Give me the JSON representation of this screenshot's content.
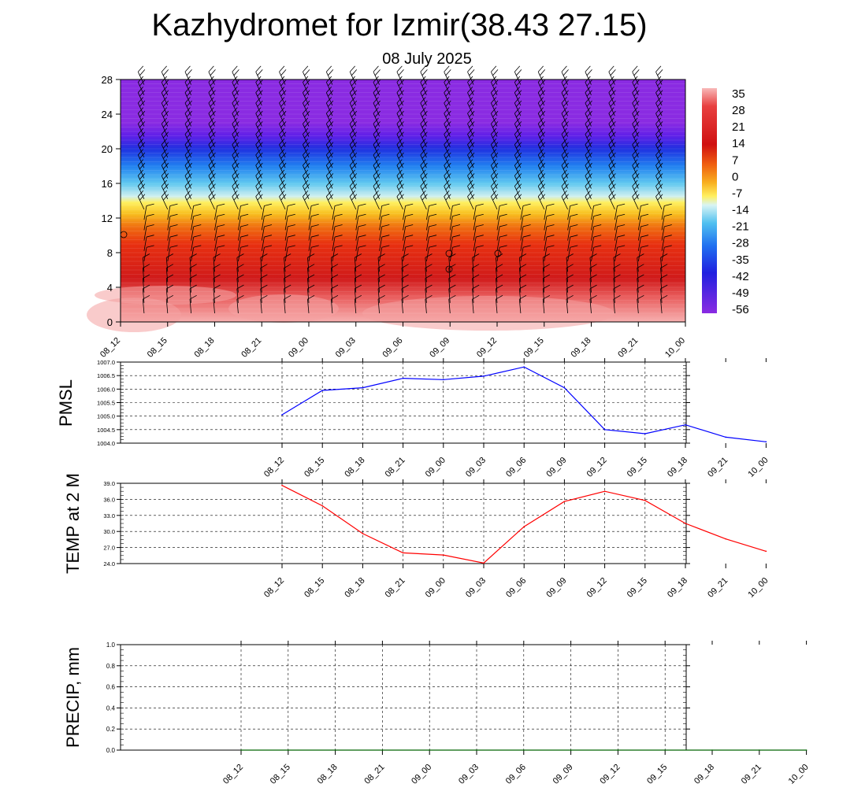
{
  "title": "Kazhydromet for Izmir(38.43 27.15)",
  "subtitle": "08 July 2025",
  "chart_data": [
    {
      "type": "heatmap",
      "name": "vertical-section",
      "time_labels": [
        "08_12",
        "08_15",
        "08_18",
        "08_21",
        "09_00",
        "09_03",
        "09_06",
        "09_09",
        "09_12",
        "09_15",
        "09_18",
        "09_21",
        "10_00"
      ],
      "y_ticks": [
        0,
        4,
        8,
        12,
        16,
        20,
        24,
        28
      ],
      "ylim": [
        0,
        28
      ],
      "colorbar_labels": [
        "35",
        "28",
        "21",
        "14",
        "7",
        "0",
        "-7",
        "-14",
        "-21",
        "-28",
        "-35",
        "-42",
        "-49",
        "-56"
      ],
      "colors": {
        "stops": [
          {
            "level": 0,
            "color": "#f7b0b0"
          },
          {
            "level": 3,
            "color": "#e85a5a"
          },
          {
            "level": 5,
            "color": "#d01a1a"
          },
          {
            "level": 9,
            "color": "#e83010"
          },
          {
            "level": 11,
            "color": "#f07010"
          },
          {
            "level": 12.5,
            "color": "#f8c020"
          },
          {
            "level": 13.8,
            "color": "#fff060"
          },
          {
            "level": 14.5,
            "color": "#d0f0f0"
          },
          {
            "level": 16,
            "color": "#60c8f0"
          },
          {
            "level": 18,
            "color": "#2080f0"
          },
          {
            "level": 20,
            "color": "#2030e0"
          },
          {
            "level": 21.5,
            "color": "#6020e8"
          },
          {
            "level": 23,
            "color": "#8a2be2"
          },
          {
            "level": 28,
            "color": "#8a2be2"
          }
        ]
      },
      "description_type": "temperature contour with wind barbs"
    },
    {
      "type": "line",
      "name": "pmsl",
      "ylabel": "PMSL",
      "categories": [
        "08_12",
        "08_15",
        "08_18",
        "08_21",
        "09_00",
        "09_03",
        "09_06",
        "09_09",
        "09_12",
        "09_15",
        "09_18",
        "09_21",
        "10_00"
      ],
      "values": [
        1005.05,
        1005.95,
        1006.05,
        1006.4,
        1006.35,
        1006.48,
        1006.82,
        1006.05,
        1004.5,
        1004.35,
        1004.68,
        1004.22,
        1004.05
      ],
      "ylim": [
        1004.0,
        1007.0
      ],
      "y_ticks": [
        "1004.0",
        "1004.5",
        "1005.0",
        "1005.5",
        "1006.0",
        "1006.5",
        "1007.0"
      ],
      "color": "#0000ff"
    },
    {
      "type": "line",
      "name": "temp2m",
      "ylabel": "TEMP at 2 M",
      "categories": [
        "08_12",
        "08_15",
        "08_18",
        "08_21",
        "09_00",
        "09_03",
        "09_06",
        "09_09",
        "09_12",
        "09_15",
        "09_18",
        "09_21",
        "10_00"
      ],
      "values": [
        38.6,
        34.8,
        29.6,
        26.0,
        25.6,
        24.1,
        30.9,
        35.6,
        37.5,
        35.8,
        31.5,
        28.6,
        26.3
      ],
      "ylim": [
        24.0,
        39.0
      ],
      "y_ticks": [
        "24.0",
        "27.0",
        "30.0",
        "33.0",
        "36.0",
        "39.0"
      ],
      "color": "#ff0000"
    },
    {
      "type": "line",
      "name": "precip",
      "ylabel": "PRECIP, mm",
      "categories": [
        "08_12",
        "08_15",
        "08_18",
        "08_21",
        "09_00",
        "09_03",
        "09_06",
        "09_09",
        "09_12",
        "09_15",
        "09_18",
        "09_21",
        "10_00"
      ],
      "values": [
        0,
        0,
        0,
        0,
        0,
        0,
        0,
        0,
        0,
        0,
        0,
        0,
        0
      ],
      "ylim": [
        0.0,
        1.0
      ],
      "y_ticks": [
        "0.0",
        "0.2",
        "0.4",
        "0.6",
        "0.8",
        "1.0"
      ],
      "color": "#006400"
    }
  ]
}
